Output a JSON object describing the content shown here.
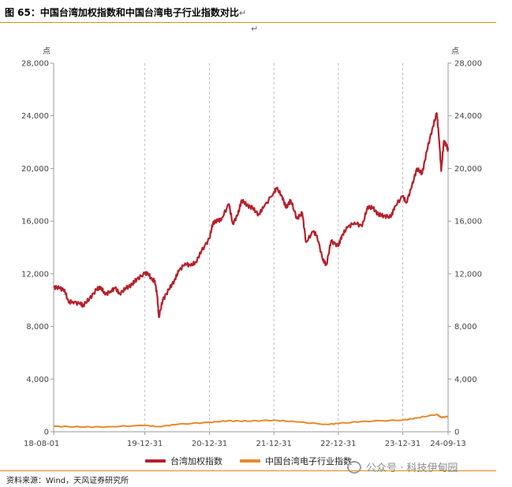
{
  "header": {
    "title": "图 65：中国台湾加权指数和中国台湾电子行业指数对比",
    "return_mark": "↵"
  },
  "chart_data": {
    "type": "line",
    "title": "",
    "left_unit": "点",
    "right_unit": "点",
    "ylim": [
      0,
      28000
    ],
    "yticks": [
      0,
      4000,
      8000,
      12000,
      16000,
      20000,
      24000,
      28000
    ],
    "ytick_labels": [
      "0",
      "4,000",
      "8,000",
      "12,000",
      "16,000",
      "20,000",
      "24,000",
      "28,000"
    ],
    "xlim": [
      "2018-08-01",
      "2024-09-13"
    ],
    "xtick_labels": [
      "18-08-01",
      "19-12-31",
      "20-12-31",
      "21-12-31",
      "22-12-31",
      "23-12-31",
      "24-09-13"
    ],
    "xtick_dates": [
      "2018-08-01",
      "2019-12-31",
      "2020-12-31",
      "2021-12-31",
      "2022-12-31",
      "2023-12-31",
      "2024-09-13"
    ],
    "grid": "vertical-dashed",
    "legend_position": "bottom",
    "series": [
      {
        "name": "台湾加权指数",
        "color": "#b5202a",
        "points": [
          [
            "2018-08-01",
            11000
          ],
          [
            "2018-09-01",
            10900
          ],
          [
            "2018-10-01",
            10800
          ],
          [
            "2018-10-25",
            9800
          ],
          [
            "2018-11-15",
            9900
          ],
          [
            "2018-12-31",
            9700
          ],
          [
            "2019-01-15",
            9600
          ],
          [
            "2019-02-20",
            10100
          ],
          [
            "2019-04-01",
            10800
          ],
          [
            "2019-04-25",
            11000
          ],
          [
            "2019-05-20",
            10400
          ],
          [
            "2019-06-20",
            10700
          ],
          [
            "2019-07-15",
            10900
          ],
          [
            "2019-08-10",
            10500
          ],
          [
            "2019-09-15",
            10900
          ],
          [
            "2019-10-20",
            11200
          ],
          [
            "2019-11-15",
            11600
          ],
          [
            "2019-12-31",
            12000
          ],
          [
            "2020-01-15",
            12100
          ],
          [
            "2020-02-10",
            11500
          ],
          [
            "2020-02-25",
            11500
          ],
          [
            "2020-03-10",
            10300
          ],
          [
            "2020-03-19",
            8700
          ],
          [
            "2020-04-10",
            10000
          ],
          [
            "2020-05-15",
            10800
          ],
          [
            "2020-06-15",
            11500
          ],
          [
            "2020-07-10",
            12200
          ],
          [
            "2020-08-15",
            12800
          ],
          [
            "2020-09-15",
            12600
          ],
          [
            "2020-10-15",
            12900
          ],
          [
            "2020-11-15",
            13700
          ],
          [
            "2020-12-31",
            14700
          ],
          [
            "2021-01-20",
            15900
          ],
          [
            "2021-02-15",
            16000
          ],
          [
            "2021-03-10",
            16200
          ],
          [
            "2021-04-20",
            17300
          ],
          [
            "2021-05-12",
            15800
          ],
          [
            "2021-06-10",
            16500
          ],
          [
            "2021-07-01",
            17600
          ],
          [
            "2021-08-01",
            17200
          ],
          [
            "2021-09-01",
            17000
          ],
          [
            "2021-10-05",
            16500
          ],
          [
            "2021-11-01",
            17000
          ],
          [
            "2021-12-31",
            18200
          ],
          [
            "2022-01-15",
            18500
          ],
          [
            "2022-02-15",
            17900
          ],
          [
            "2022-03-10",
            17000
          ],
          [
            "2022-04-05",
            17600
          ],
          [
            "2022-05-10",
            16200
          ],
          [
            "2022-06-10",
            16600
          ],
          [
            "2022-07-01",
            14400
          ],
          [
            "2022-08-10",
            15200
          ],
          [
            "2022-09-01",
            14900
          ],
          [
            "2022-10-05",
            13000
          ],
          [
            "2022-10-25",
            12700
          ],
          [
            "2022-11-20",
            14500
          ],
          [
            "2022-12-31",
            14100
          ],
          [
            "2023-01-20",
            14900
          ],
          [
            "2023-02-20",
            15500
          ],
          [
            "2023-04-01",
            15900
          ],
          [
            "2023-05-15",
            15600
          ],
          [
            "2023-06-15",
            17100
          ],
          [
            "2023-07-15",
            17000
          ],
          [
            "2023-08-15",
            16500
          ],
          [
            "2023-09-15",
            16400
          ],
          [
            "2023-10-25",
            16300
          ],
          [
            "2023-11-15",
            17100
          ],
          [
            "2023-12-31",
            17900
          ],
          [
            "2024-01-20",
            17400
          ],
          [
            "2024-02-20",
            18600
          ],
          [
            "2024-03-20",
            20000
          ],
          [
            "2024-04-19",
            19600
          ],
          [
            "2024-05-15",
            21300
          ],
          [
            "2024-06-15",
            23000
          ],
          [
            "2024-07-11",
            24200
          ],
          [
            "2024-07-25",
            22100
          ],
          [
            "2024-08-05",
            19800
          ],
          [
            "2024-08-20",
            22100
          ],
          [
            "2024-09-05",
            21700
          ],
          [
            "2024-09-13",
            21400
          ]
        ]
      },
      {
        "name": "中国台湾电子行业指数",
        "color": "#e8892a",
        "points": [
          [
            "2018-08-01",
            420
          ],
          [
            "2018-12-31",
            360
          ],
          [
            "2019-06-01",
            380
          ],
          [
            "2019-12-31",
            480
          ],
          [
            "2020-03-19",
            390
          ],
          [
            "2020-07-01",
            560
          ],
          [
            "2020-12-31",
            720
          ],
          [
            "2021-04-15",
            830
          ],
          [
            "2021-08-01",
            800
          ],
          [
            "2021-12-31",
            880
          ],
          [
            "2022-05-01",
            760
          ],
          [
            "2022-10-25",
            560
          ],
          [
            "2022-12-31",
            630
          ],
          [
            "2023-06-01",
            800
          ],
          [
            "2023-12-31",
            880
          ],
          [
            "2024-03-20",
            1050
          ],
          [
            "2024-07-11",
            1320
          ],
          [
            "2024-08-05",
            1080
          ],
          [
            "2024-09-13",
            1180
          ]
        ]
      }
    ]
  },
  "source": {
    "text": "资料来源：Wind，天风证券研究所"
  },
  "watermark": {
    "text": "公众号 · 科技伊甸园"
  }
}
